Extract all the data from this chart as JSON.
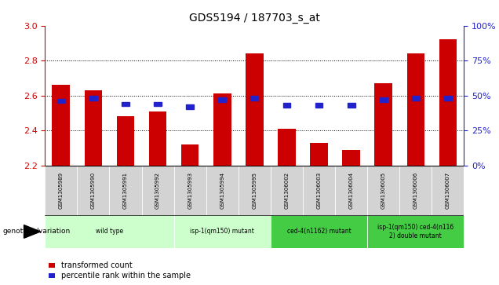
{
  "title": "GDS5194 / 187703_s_at",
  "samples": [
    "GSM1305989",
    "GSM1305990",
    "GSM1305991",
    "GSM1305992",
    "GSM1305993",
    "GSM1305994",
    "GSM1305995",
    "GSM1306002",
    "GSM1306003",
    "GSM1306004",
    "GSM1306005",
    "GSM1306006",
    "GSM1306007"
  ],
  "bar_values": [
    2.66,
    2.63,
    2.48,
    2.51,
    2.32,
    2.61,
    2.84,
    2.41,
    2.33,
    2.29,
    2.67,
    2.84,
    2.92
  ],
  "blue_pct": [
    46,
    48,
    44,
    44,
    42,
    47,
    48,
    43,
    43,
    43,
    47,
    48,
    48
  ],
  "ylim_left": [
    2.2,
    3.0
  ],
  "ylim_right": [
    0,
    100
  ],
  "yticks_left": [
    2.2,
    2.4,
    2.6,
    2.8,
    3.0
  ],
  "yticks_right": [
    0,
    25,
    50,
    75,
    100
  ],
  "bar_color": "#cc0000",
  "blue_color": "#2222cc",
  "bar_width": 0.55,
  "group_defs": [
    {
      "start": 0,
      "end": 3,
      "label": "wild type",
      "color": "#ccffcc"
    },
    {
      "start": 4,
      "end": 6,
      "label": "isp-1(qm150) mutant",
      "color": "#ccffcc"
    },
    {
      "start": 7,
      "end": 9,
      "label": "ced-4(n1162) mutant",
      "color": "#44cc44"
    },
    {
      "start": 10,
      "end": 12,
      "label": "isp-1(qm150) ced-4(n116\n2) double mutant",
      "color": "#44cc44"
    }
  ],
  "legend_items": [
    "transformed count",
    "percentile rank within the sample"
  ],
  "genotype_label": "genotype/variation",
  "grid_color": "black",
  "bg_color": "#ffffff",
  "left_axis_color": "#cc0000",
  "right_axis_color": "#2222cc",
  "gray_cell_color": "#d3d3d3"
}
